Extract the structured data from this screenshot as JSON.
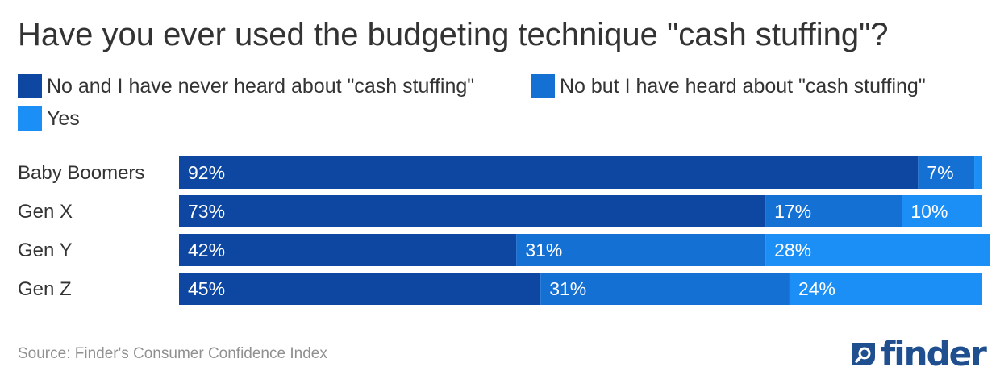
{
  "chart_data": {
    "type": "bar",
    "orientation": "horizontal",
    "stacked": true,
    "title": "Have you ever used the budgeting technique \"cash stuffing\"?",
    "categories": [
      "Baby Boomers",
      "Gen X",
      "Gen Y",
      "Gen Z"
    ],
    "series": [
      {
        "name": "No and I have never heard about \"cash stuffing\"",
        "color": "#0d47a1",
        "values": [
          92,
          73,
          42,
          45
        ],
        "labels": [
          "92%",
          "73%",
          "42%",
          "45%"
        ]
      },
      {
        "name": "No but I have heard about \"cash stuffing\"",
        "color": "#1570d4",
        "values": [
          7,
          17,
          31,
          31
        ],
        "labels": [
          "7%",
          "17%",
          "31%",
          "31%"
        ]
      },
      {
        "name": "Yes",
        "color": "#1b8ff5",
        "values": [
          1,
          10,
          28,
          24
        ],
        "labels": [
          "",
          "10%",
          "28%",
          "24%"
        ]
      }
    ],
    "xlim": [
      0,
      100
    ],
    "label_color": "#ffffff"
  },
  "source": "Source: Finder's Consumer Confidence Index",
  "logo": {
    "text": "finder",
    "color": "#1f4f8f"
  }
}
